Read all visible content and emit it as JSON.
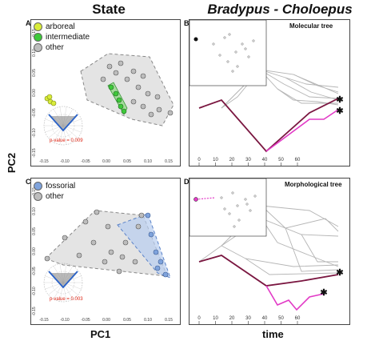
{
  "titles": {
    "state": "State",
    "clades": "Bradypus - Choloepus"
  },
  "axes": {
    "pc1": "PC1",
    "pc2": "PC2",
    "time": "time"
  },
  "panels": {
    "A": {
      "letter": "A",
      "legend": [
        {
          "label": "arboreal",
          "color": "#d9ec3a"
        },
        {
          "label": "intermediate",
          "color": "#3ec93a"
        },
        {
          "label": "other",
          "color": "#bdbdbd"
        }
      ],
      "pvalue": "p-value = 0.009"
    },
    "B": {
      "letter": "B",
      "tag": "Molecular tree"
    },
    "C": {
      "letter": "C",
      "legend": [
        {
          "label": "fossorial",
          "color": "#7fa3dc"
        },
        {
          "label": "other",
          "color": "#bdbdbd"
        }
      ],
      "pvalue": "p-value = 0.003"
    },
    "D": {
      "letter": "D",
      "tag": "Morphological tree"
    }
  },
  "morpho_ticks": {
    "x": [
      "-0.15",
      "-0.10",
      "-0.05",
      "0.00",
      "0.05",
      "0.10",
      "0.15"
    ],
    "y": [
      "0.15",
      "0.10",
      "0.05",
      "0.00",
      "-0.05",
      "-0.10",
      "-0.15"
    ]
  },
  "time_ticks": [
    "0",
    "10",
    "20",
    "30",
    "40",
    "50",
    "60"
  ],
  "colors": {
    "bradypus": "#7a1640",
    "choloepus": "#e23ac6",
    "grey": "#b5b5b5"
  }
}
